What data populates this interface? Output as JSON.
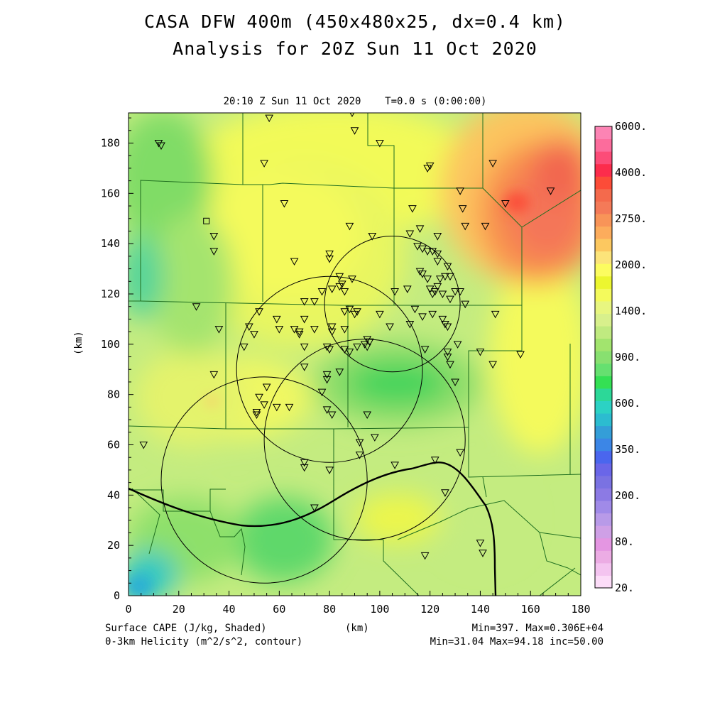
{
  "figure": {
    "title": "CASA DFW 400m (450x480x25, dx=0.4 km)",
    "subtitle": "Analysis for 20Z Sun 11 Oct 2020",
    "timestamp": "20:10 Z Sun 11 Oct 2020    T=0.0 s (0:00:00)",
    "xlabel": "(km)",
    "ylabel": "(km)",
    "field_shaded": "Surface CAPE (J/kg, Shaded)",
    "field_contour": "0-3km Helicity (m^2/s^2, contour)",
    "shaded_stats": "Min=397. Max=0.306E+04",
    "contour_stats": "Min=31.04 Max=94.18 inc=50.00"
  },
  "axes": {
    "xlim": [
      0,
      180
    ],
    "ylim": [
      0,
      192
    ],
    "xticks": [
      "0",
      "20",
      "40",
      "60",
      "80",
      "100",
      "120",
      "140",
      "160",
      "180"
    ],
    "yticks": [
      "0",
      "20",
      "40",
      "60",
      "80",
      "100",
      "120",
      "140",
      "160",
      "180"
    ]
  },
  "colorbar": {
    "colors": [
      "#fcdcf8",
      "#f4c4f0",
      "#ecace4",
      "#e496e2",
      "#cfa0e6",
      "#b89ae8",
      "#a08ae8",
      "#8c7ae4",
      "#7a72e2",
      "#6a66e8",
      "#4a66ee",
      "#3c86e6",
      "#349ed8",
      "#2cbcd0",
      "#2cd2c4",
      "#2cd898",
      "#34e054",
      "#66e070",
      "#88e070",
      "#a2e46e",
      "#c0ea80",
      "#d8f08c",
      "#e8f680",
      "#f4fa5c",
      "#ecf630",
      "#fcfc60",
      "#fce47a",
      "#fcc860",
      "#fcac5c",
      "#f89458",
      "#f47a58",
      "#f46a4c",
      "#fc4c38",
      "#fc2c4c",
      "#fc4c78",
      "#fc6c9c",
      "#fc84b4"
    ],
    "labels": [
      "20.",
      "80.",
      "200.",
      "350.",
      "600.",
      "900.",
      "1400.",
      "2000.",
      "2750.",
      "4000.",
      "6000."
    ]
  },
  "chart_data": {
    "type": "map",
    "title": "CASA DFW 400m (450x480x25, dx=0.4 km)",
    "variable_shaded": "Surface CAPE (J/kg)",
    "cape_range": [
      397,
      3060
    ],
    "variable_contour": "0-3km Helicity (m^2/s^2)",
    "helicity_range": [
      31.04,
      94.18
    ],
    "contour_increment": 50.0,
    "radar_rings": [
      {
        "center_km": [
          105,
          116
        ],
        "radius_km": 27
      },
      {
        "center_km": [
          80,
          90
        ],
        "radius_km": 37
      },
      {
        "center_km": [
          94,
          62
        ],
        "radius_km": 40
      },
      {
        "center_km": [
          54,
          46
        ],
        "radius_km": 41
      }
    ],
    "stations_km": [
      [
        12,
        180
      ],
      [
        13,
        179
      ],
      [
        56,
        190
      ],
      [
        89,
        192
      ],
      [
        90,
        185
      ],
      [
        100,
        180
      ],
      [
        54,
        172
      ],
      [
        145,
        172
      ],
      [
        119,
        170
      ],
      [
        120,
        171
      ],
      [
        62,
        156
      ],
      [
        132,
        161
      ],
      [
        133,
        154
      ],
      [
        134,
        147
      ],
      [
        142,
        147
      ],
      [
        168,
        161
      ],
      [
        150,
        156
      ],
      [
        34,
        143
      ],
      [
        34,
        137
      ],
      [
        66,
        133
      ],
      [
        80,
        136
      ],
      [
        80,
        134
      ],
      [
        88,
        147
      ],
      [
        97,
        143
      ],
      [
        113,
        154
      ],
      [
        112,
        144
      ],
      [
        116,
        146
      ],
      [
        123,
        143
      ],
      [
        115,
        139
      ],
      [
        117,
        138
      ],
      [
        119,
        137
      ],
      [
        121,
        137
      ],
      [
        123,
        136
      ],
      [
        123,
        133
      ],
      [
        127,
        131
      ],
      [
        128,
        127
      ],
      [
        116,
        129
      ],
      [
        117,
        128
      ],
      [
        119,
        126
      ],
      [
        126,
        127
      ],
      [
        124,
        126
      ],
      [
        84,
        127
      ],
      [
        89,
        126
      ],
      [
        85,
        124
      ],
      [
        84,
        123
      ],
      [
        86,
        121
      ],
      [
        77,
        121
      ],
      [
        81,
        122
      ],
      [
        106,
        121
      ],
      [
        111,
        122
      ],
      [
        120,
        122
      ],
      [
        122,
        121
      ],
      [
        121,
        120
      ],
      [
        123,
        123
      ],
      [
        125,
        120
      ],
      [
        130,
        121
      ],
      [
        132,
        121
      ],
      [
        128,
        118
      ],
      [
        134,
        116
      ],
      [
        146,
        112
      ],
      [
        70,
        117
      ],
      [
        74,
        117
      ],
      [
        86,
        113
      ],
      [
        88,
        114
      ],
      [
        91,
        113
      ],
      [
        90,
        112
      ],
      [
        100,
        112
      ],
      [
        114,
        114
      ],
      [
        117,
        111
      ],
      [
        121,
        112
      ],
      [
        125,
        110
      ],
      [
        126,
        108
      ],
      [
        127,
        107
      ],
      [
        104,
        107
      ],
      [
        112,
        108
      ],
      [
        27,
        115
      ],
      [
        52,
        113
      ],
      [
        59,
        110
      ],
      [
        60,
        106
      ],
      [
        70,
        110
      ],
      [
        66,
        106
      ],
      [
        68,
        105
      ],
      [
        68,
        104
      ],
      [
        74,
        106
      ],
      [
        81,
        107
      ],
      [
        86,
        106
      ],
      [
        81,
        105
      ],
      [
        70,
        99
      ],
      [
        79,
        99
      ],
      [
        80,
        98
      ],
      [
        86,
        98
      ],
      [
        88,
        97
      ],
      [
        91,
        99
      ],
      [
        94,
        100
      ],
      [
        95,
        102
      ],
      [
        96,
        101
      ],
      [
        95,
        99
      ],
      [
        118,
        98
      ],
      [
        131,
        100
      ],
      [
        140,
        97
      ],
      [
        145,
        92
      ],
      [
        156,
        96
      ],
      [
        127,
        97
      ],
      [
        127,
        95
      ],
      [
        128,
        92
      ],
      [
        36,
        106
      ],
      [
        48,
        107
      ],
      [
        50,
        104
      ],
      [
        46,
        99
      ],
      [
        34,
        88
      ],
      [
        70,
        91
      ],
      [
        79,
        88
      ],
      [
        79,
        86
      ],
      [
        84,
        89
      ],
      [
        130,
        85
      ],
      [
        52,
        79
      ],
      [
        55,
        83
      ],
      [
        54,
        76
      ],
      [
        51,
        73
      ],
      [
        51,
        72
      ],
      [
        59,
        75
      ],
      [
        64,
        75
      ],
      [
        77,
        81
      ],
      [
        79,
        74
      ],
      [
        81,
        72
      ],
      [
        95,
        72
      ],
      [
        98,
        63
      ],
      [
        92,
        61
      ],
      [
        6,
        60
      ],
      [
        70,
        53
      ],
      [
        70,
        51
      ],
      [
        80,
        50
      ],
      [
        92,
        56
      ],
      [
        106,
        52
      ],
      [
        122,
        54
      ],
      [
        132,
        57
      ],
      [
        126,
        41
      ],
      [
        74,
        35
      ],
      [
        118,
        16
      ],
      [
        140,
        21
      ],
      [
        141,
        17
      ]
    ],
    "station_square_km": [
      31,
      149
    ]
  }
}
